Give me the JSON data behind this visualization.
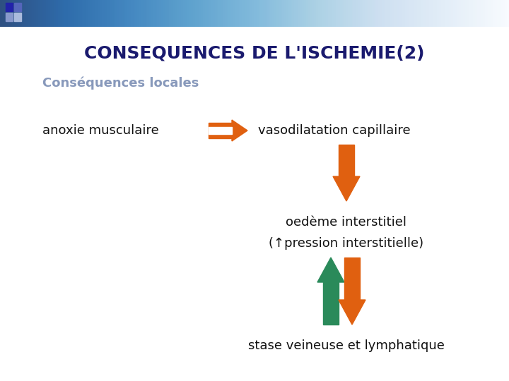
{
  "title": "CONSEQUENCES DE L'ISCHEMIE(2)",
  "subtitle": "Conséquences locales",
  "title_color": "#1a1a6e",
  "subtitle_color": "#8899bb",
  "text_color": "#111111",
  "bg_color": "#ffffff",
  "orange_color": "#e06010",
  "green_color": "#2a8a5a",
  "label_anoxie": "anoxie musculaire",
  "label_vaso": "vasodilatation capillaire",
  "label_oedeme": "oedème interstitiel",
  "label_pression": "(↑pression interstitielle)",
  "label_stase": "stase veineuse et lymphatique"
}
